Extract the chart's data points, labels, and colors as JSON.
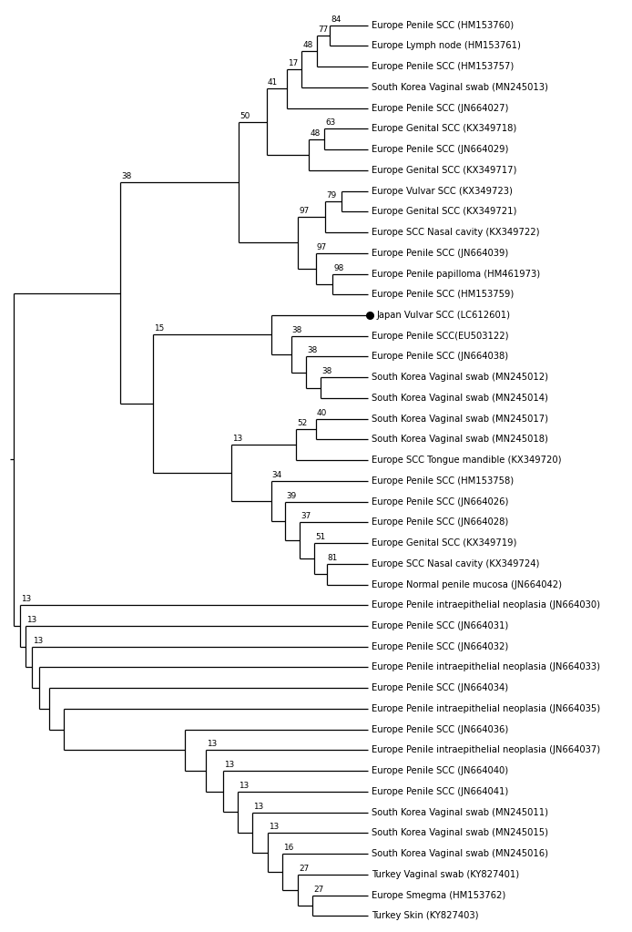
{
  "taxa": [
    "Europe Penile SCC (HM153760)",
    "Europe Lymph node (HM153761)",
    "Europe Penile SCC (HM153757)",
    "South Korea Vaginal swab (MN245013)",
    "Europe Penile SCC (JN664027)",
    "Europe Genital SCC (KX349718)",
    "Europe Penile SCC (JN664029)",
    "Europe Genital SCC (KX349717)",
    "Europe Vulvar SCC (KX349723)",
    "Europe Genital SCC (KX349721)",
    "Europe SCC Nasal cavity (KX349722)",
    "Europe Penile SCC (JN664039)",
    "Europe Penile papilloma (HM461973)",
    "Europe Penile SCC (HM153759)",
    "Japan Vulvar SCC (LC612601)",
    "Europe Penile SCC(EU503122)",
    "Europe Penile SCC (JN664038)",
    "South Korea Vaginal swab (MN245012)",
    "South Korea Vaginal swab (MN245014)",
    "South Korea Vaginal swab (MN245017)",
    "South Korea Vaginal swab (MN245018)",
    "Europe SCC Tongue mandible (KX349720)",
    "Europe Penile SCC (HM153758)",
    "Europe Penile SCC (JN664026)",
    "Europe Penile SCC (JN664028)",
    "Europe Genital SCC (KX349719)",
    "Europe SCC Nasal cavity (KX349724)",
    "Europe Normal penile mucosa (JN664042)",
    "Europe Penile intraepithelial neoplasia (JN664030)",
    "Europe Penile SCC (JN664031)",
    "Europe Penile SCC (JN664032)",
    "Europe Penile intraepithelial neoplasia (JN664033)",
    "Europe Penile SCC (JN664034)",
    "Europe Penile intraepithelial neoplasia (JN664035)",
    "Europe Penile SCC (JN664036)",
    "Europe Penile intraepithelial neoplasia (JN664037)",
    "Europe Penile SCC (JN664040)",
    "Europe Penile SCC (JN664041)",
    "South Korea Vaginal swab (MN245011)",
    "South Korea Vaginal swab (MN245015)",
    "South Korea Vaginal swab (MN245016)",
    "Turkey Vaginal swab (KY827401)",
    "Europe Smegma (HM153762)",
    "Turkey Skin (KY827403)"
  ],
  "special_taxon": "Japan Vulvar SCC (LC612601)",
  "figsize": [
    6.94,
    10.23
  ],
  "font_size": 7.2,
  "line_width": 0.9,
  "bg_color": "#ffffff"
}
